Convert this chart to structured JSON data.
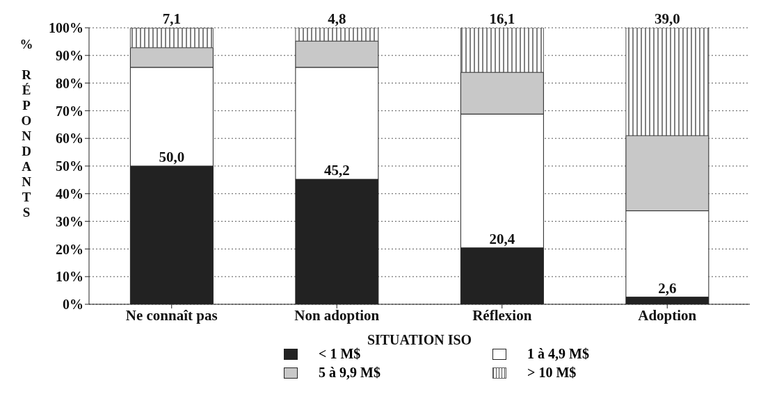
{
  "chart_data": {
    "type": "bar",
    "stacked": true,
    "xlabel": "SITUATION ISO",
    "ylabel": "% RÉPONDANTS",
    "categories": [
      "Ne connaît pas",
      "Non adoption",
      "Réflexion",
      "Adoption"
    ],
    "series": [
      {
        "name": "< 1 M$",
        "color": "#222222",
        "values": [
          50.0,
          45.2,
          20.4,
          2.6
        ],
        "value_labels": [
          "50,0",
          "45,2",
          "20,4",
          "2,6"
        ]
      },
      {
        "name": "1 à 4,9 M$",
        "color": "#ffffff",
        "values": [
          35.7,
          40.5,
          48.4,
          31.2
        ]
      },
      {
        "name": "5 à 9,9 M$",
        "color": "#c8c8c8",
        "values": [
          7.1,
          9.5,
          15.1,
          27.2
        ]
      },
      {
        "name": "> 10 M$",
        "color": "#555555",
        "values": [
          7.1,
          4.8,
          16.1,
          39.0
        ],
        "value_labels": [
          "7,1",
          "4,8",
          "16,1",
          "39,0"
        ]
      }
    ],
    "ylim": [
      0,
      100
    ],
    "yticks": [
      {
        "value": 0,
        "label": "0%"
      },
      {
        "value": 10,
        "label": "10%"
      },
      {
        "value": 20,
        "label": "20%"
      },
      {
        "value": 30,
        "label": "30%"
      },
      {
        "value": 40,
        "label": "40%"
      },
      {
        "value": 50,
        "label": "50%"
      },
      {
        "value": 60,
        "label": "60%"
      },
      {
        "value": 70,
        "label": "70%"
      },
      {
        "value": 80,
        "label": "80%"
      },
      {
        "value": 90,
        "label": "90%"
      },
      {
        "value": 100,
        "label": "100%"
      }
    ],
    "grid": "y",
    "legend": "bottom"
  }
}
